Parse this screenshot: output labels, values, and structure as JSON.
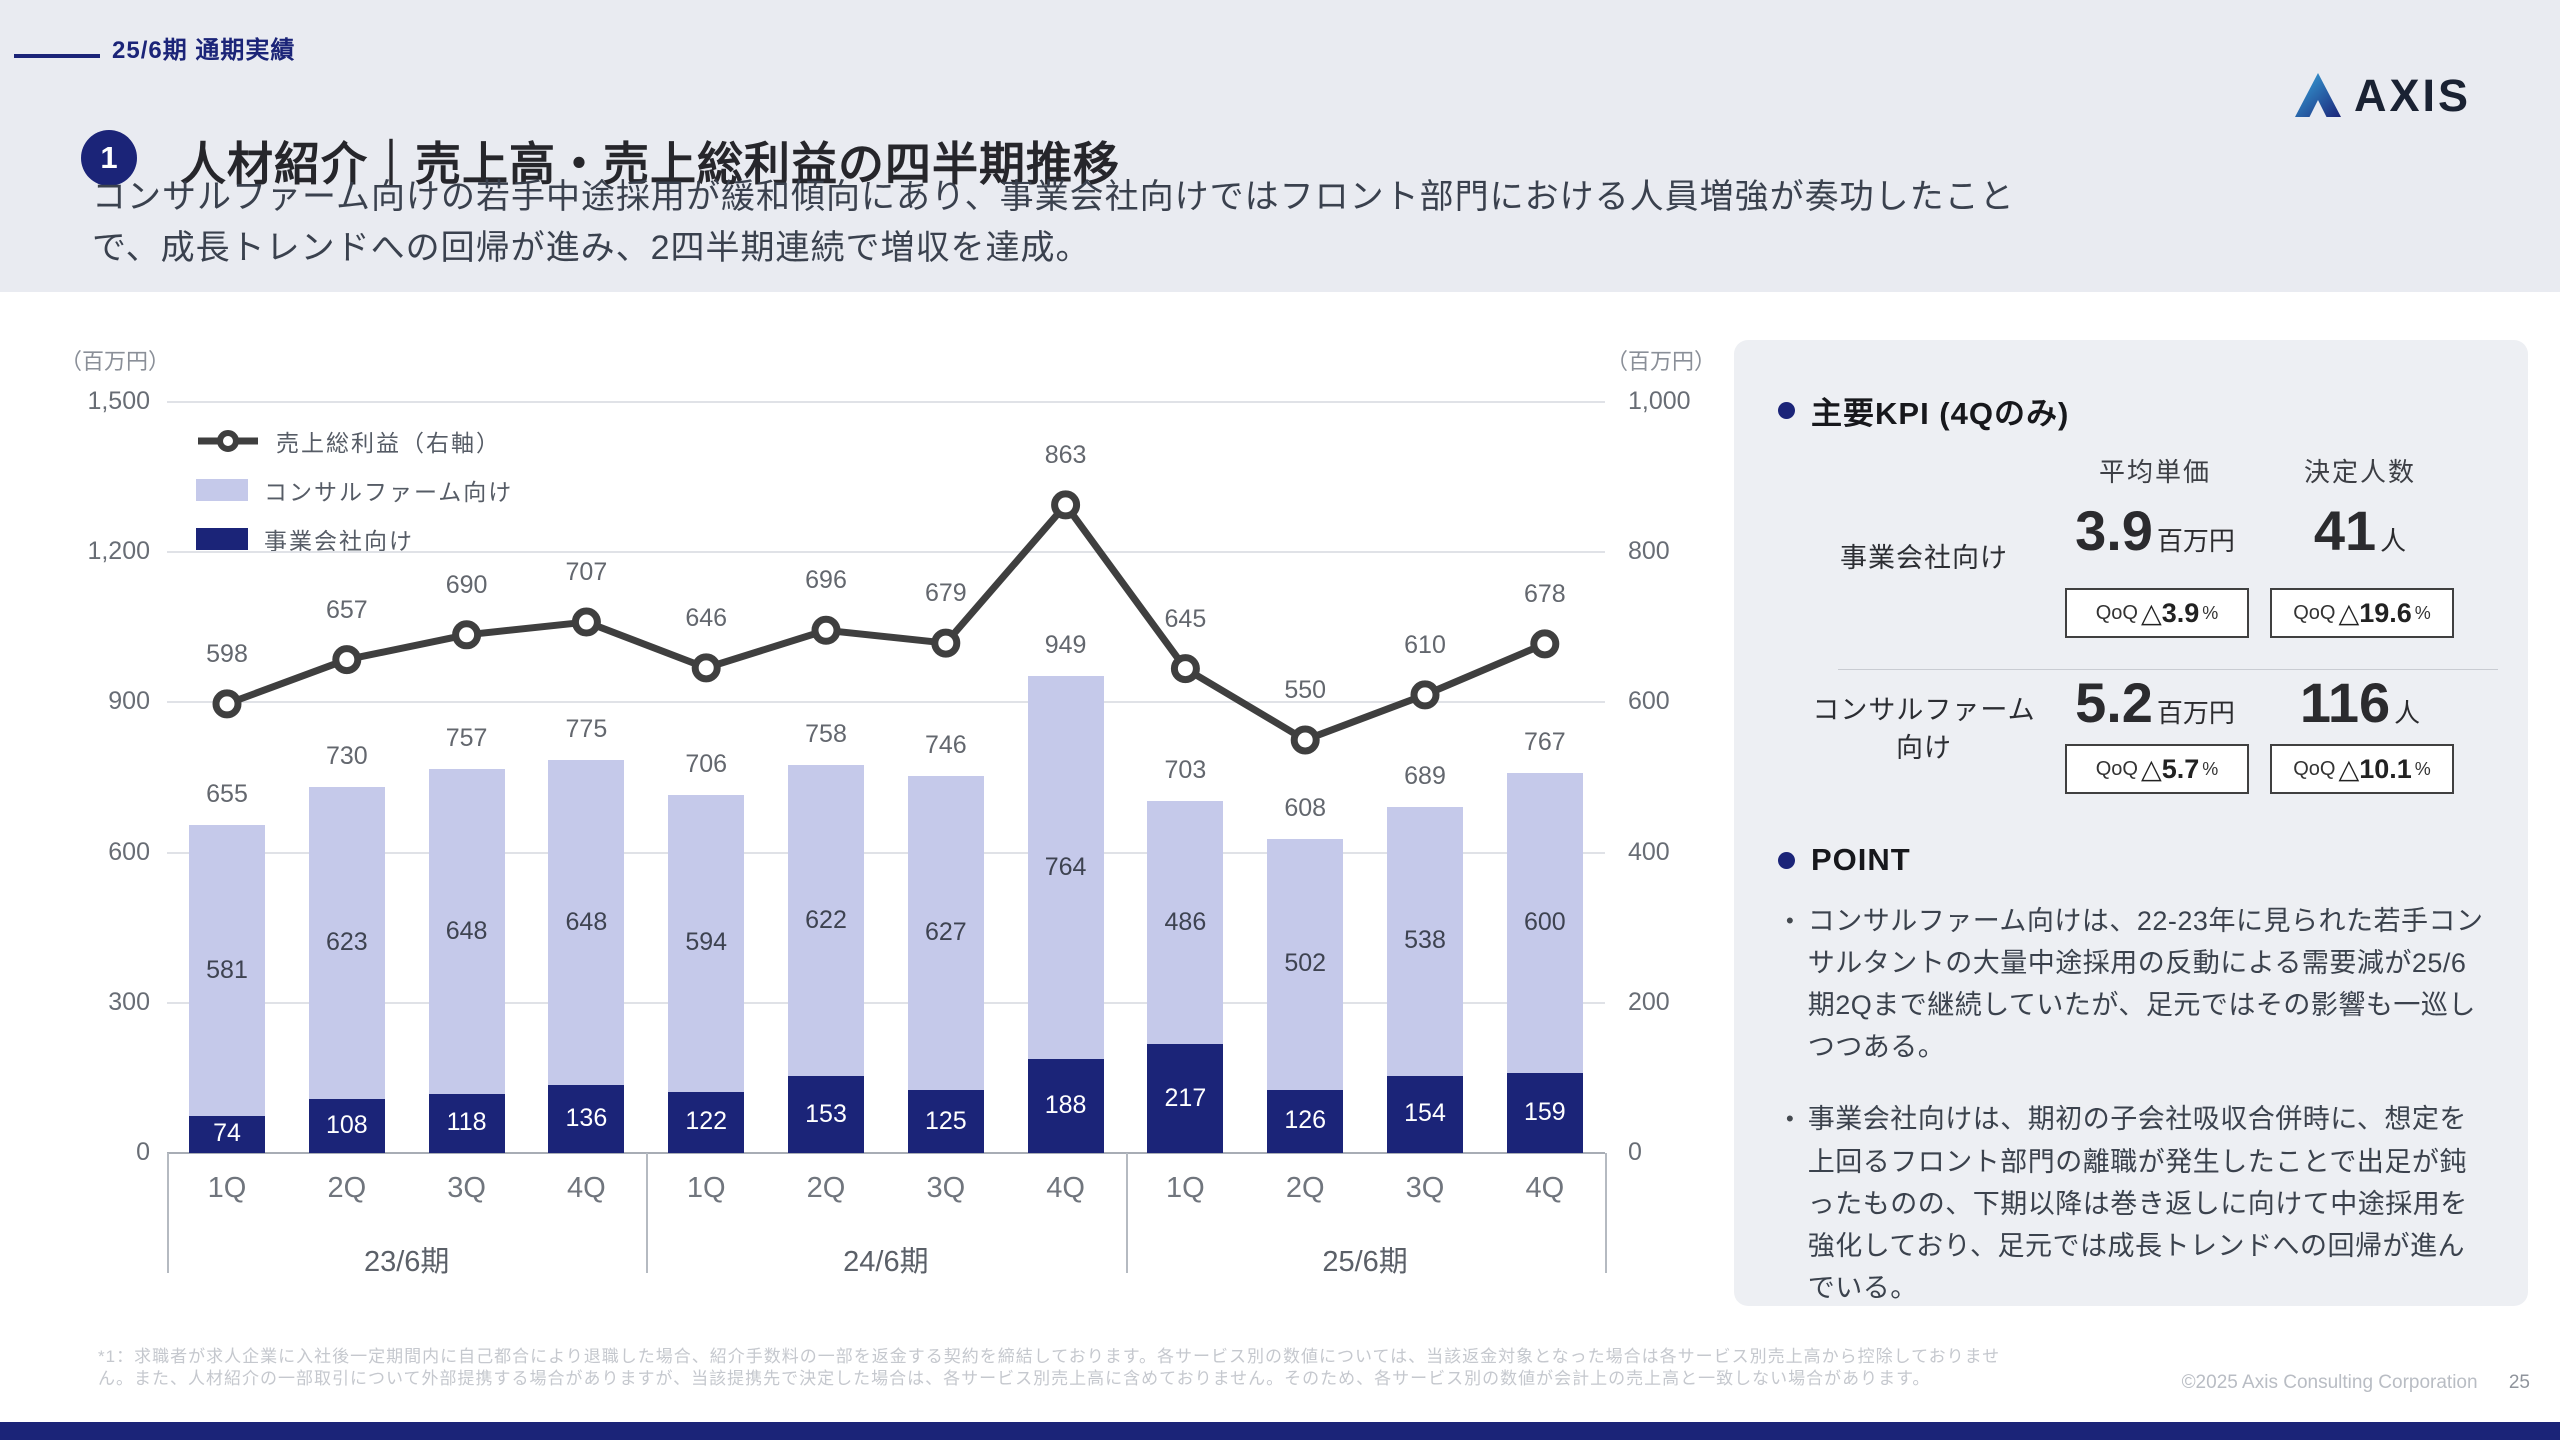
{
  "colors": {
    "accent_navy": "#1b2478",
    "bar_light": "#c5c9ea",
    "bar_dark": "#1b2478",
    "line": "#3f3f3f",
    "band_bg": "#e9ebf1",
    "panel_bg": "#edeff3",
    "grid": "#e0e2e7",
    "footnote": "#c5c8ce"
  },
  "header": {
    "tag": "25/6期 通期実績",
    "badge": "1",
    "title": "人材紹介｜売上高・売上総利益の四半期推移",
    "subtitle_line1": "コンサルファーム向けの若手中途採用が緩和傾向にあり、事業会社向けではフロント部門における人員増強が奏功したこと",
    "subtitle_line2": "で、成長トレンドへの回帰が進み、2四半期連続で増収を達成。",
    "logo_text": "AXIS"
  },
  "chart_data": {
    "type": "combo-stacked-bar-line",
    "title": "売上高・売上総利益の四半期推移",
    "left_axis": {
      "unit": "（百万円）",
      "ticks": [
        "0",
        "300",
        "600",
        "900",
        "1,200",
        "1,500"
      ],
      "min": 0,
      "max": 1500,
      "applies_to": "bars"
    },
    "right_axis": {
      "unit": "（百万円）",
      "ticks": [
        "0",
        "200",
        "400",
        "600",
        "800",
        "1,000"
      ],
      "min": 0,
      "max": 1000,
      "applies_to": "line"
    },
    "legend": [
      "売上総利益（右軸）",
      "コンサルファーム向け",
      "事業会社向け"
    ],
    "legend_position": "top-left-inside",
    "grid": true,
    "groups": [
      "23/6期",
      "24/6期",
      "25/6期"
    ],
    "quarters": [
      "1Q",
      "2Q",
      "3Q",
      "4Q",
      "1Q",
      "2Q",
      "3Q",
      "4Q",
      "1Q",
      "2Q",
      "3Q",
      "4Q"
    ],
    "series": [
      {
        "name": "事業会社向け",
        "type": "bar",
        "stack_position": "bottom",
        "values": [
          74,
          108,
          118,
          136,
          122,
          153,
          125,
          188,
          217,
          126,
          154,
          159
        ]
      },
      {
        "name": "コンサルファーム向け",
        "type": "bar",
        "stack_position": "top",
        "values": [
          581,
          623,
          648,
          648,
          594,
          622,
          627,
          764,
          486,
          502,
          538,
          600
        ]
      },
      {
        "name": "売上総利益（右軸）",
        "type": "line",
        "axis": "right",
        "values": [
          598,
          657,
          690,
          707,
          646,
          696,
          679,
          863,
          645,
          550,
          610,
          678
        ]
      }
    ],
    "bar_total_labels": [
      "655",
      "730",
      "757",
      "775",
      "706",
      "758",
      "746",
      "949",
      "703",
      "608",
      "689",
      "767"
    ]
  },
  "kpi": {
    "title": "主要KPI (4Qのみ)",
    "columns": [
      "平均単価",
      "決定人数"
    ],
    "rows": [
      {
        "label_lines": [
          "事業会社向け"
        ],
        "price": {
          "value": "3.9",
          "unit": "百万円",
          "qoq": {
            "prefix": "QoQ",
            "value": "△3.9",
            "suffix": "%"
          }
        },
        "count": {
          "value": "41",
          "unit": "人",
          "qoq": {
            "prefix": "QoQ",
            "value": "△19.6",
            "suffix": "%"
          }
        }
      },
      {
        "label_lines": [
          "コンサルファーム",
          "向け"
        ],
        "price": {
          "value": "5.2",
          "unit": "百万円",
          "qoq": {
            "prefix": "QoQ",
            "value": "△5.7",
            "suffix": "%"
          }
        },
        "count": {
          "value": "116",
          "unit": "人",
          "qoq": {
            "prefix": "QoQ",
            "value": "△10.1",
            "suffix": "%"
          }
        }
      }
    ]
  },
  "point": {
    "title": "POINT",
    "bullets": [
      "コンサルファーム向けは、22-23年に見られた若手コンサルタントの大量中途採用の反動による需要減が25/6期2Qまで継続していたが、足元ではその影響も一巡しつつある。",
      "事業会社向けは、期初の子会社吸収合併時に、想定を上回るフロント部門の離職が発生したことで出足が鈍ったものの、下期以降は巻き返しに向けて中途採用を強化しており、足元では成長トレンドへの回帰が進んでいる。"
    ]
  },
  "footer": {
    "note_line1": "*1：求職者が求人企業に入社後一定期間内に自己都合により退職した場合、紹介手数料の一部を返金する契約を締結しております。各サービス別の数値については、当該返金対象となった場合は各サービス別売上高から控除しておりませ",
    "note_line2": "ん。また、人材紹介の一部取引について外部提携する場合がありますが、当該提携先で決定した場合は、各サービス別売上高に含めておりません。そのため、各サービス別の数値が会計上の売上高と一致しない場合があります。",
    "copyright": "©2025 Axis Consulting Corporation",
    "page": "25"
  }
}
